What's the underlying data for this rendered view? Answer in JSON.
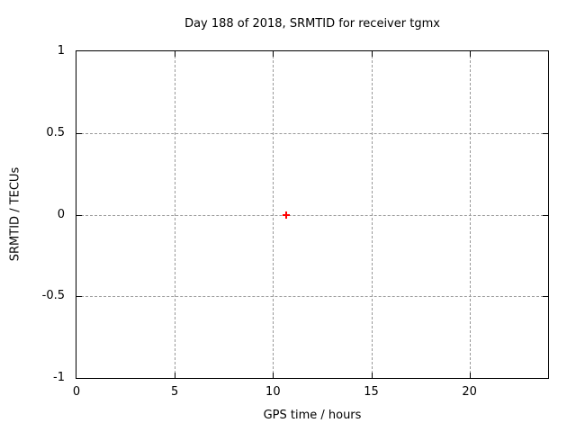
{
  "chart_data": {
    "type": "scatter",
    "title": "Day 188 of 2018, SRMTID for receiver tgmx",
    "xlabel": "GPS time / hours",
    "ylabel": "SRMTID / TECUs",
    "xlim": [
      0,
      24
    ],
    "ylim": [
      -1,
      1
    ],
    "xticks": [
      0,
      5,
      10,
      15,
      20
    ],
    "xtick_labels": [
      "0",
      "5",
      "10",
      "15",
      "20"
    ],
    "yticks": [
      -1,
      -0.5,
      0,
      0.5,
      1
    ],
    "ytick_labels": [
      "-1",
      "-0.5",
      "0",
      "0.5",
      "1"
    ],
    "grid": true,
    "legend": "none",
    "series": [
      {
        "name": "SRMTID",
        "marker": "plus",
        "color": "#ff0000",
        "points": [
          {
            "x": 10.65,
            "y": 0.0
          }
        ]
      }
    ]
  },
  "colors": {
    "background": "#ffffff",
    "plot_border": "#000000",
    "grid": "#999999",
    "text": "#000000",
    "marker": "#ff0000"
  }
}
